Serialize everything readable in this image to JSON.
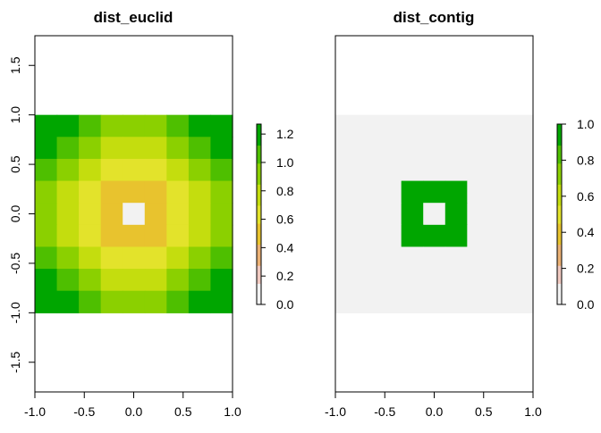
{
  "chart_data": [
    {
      "type": "heatmap",
      "title": "dist_euclid",
      "xlim": [
        -1.0,
        1.0
      ],
      "ylim": [
        -1.8,
        1.8
      ],
      "xticks": [
        "-1.0",
        "-0.5",
        "0.0",
        "0.5",
        "1.0"
      ],
      "yticks": [
        "-1.5",
        "-1.0",
        "-0.5",
        "0.0",
        "0.5",
        "1.0",
        "1.5"
      ],
      "raster_extent": {
        "x": [
          -1.0,
          1.0
        ],
        "y": [
          -1.0,
          1.0
        ]
      },
      "grid_size": [
        9,
        9
      ],
      "values": [
        [
          1.27,
          1.15,
          1.04,
          0.96,
          0.93,
          0.96,
          1.04,
          1.15,
          1.27
        ],
        [
          1.15,
          1.01,
          0.89,
          0.8,
          0.77,
          0.8,
          0.89,
          1.01,
          1.15
        ],
        [
          1.04,
          0.89,
          0.75,
          0.64,
          0.6,
          0.64,
          0.75,
          0.89,
          1.04
        ],
        [
          0.96,
          0.8,
          0.64,
          0.5,
          0.44,
          0.5,
          0.64,
          0.8,
          0.96
        ],
        [
          0.93,
          0.77,
          0.6,
          0.44,
          0.0,
          0.44,
          0.6,
          0.77,
          0.93
        ],
        [
          0.96,
          0.8,
          0.64,
          0.5,
          0.44,
          0.5,
          0.64,
          0.8,
          0.96
        ],
        [
          1.04,
          0.89,
          0.75,
          0.64,
          0.6,
          0.64,
          0.75,
          0.89,
          1.04
        ],
        [
          1.15,
          1.01,
          0.89,
          0.8,
          0.77,
          0.8,
          0.89,
          1.01,
          1.15
        ],
        [
          1.27,
          1.15,
          1.04,
          0.96,
          0.93,
          0.96,
          1.04,
          1.15,
          1.27
        ]
      ],
      "legend": {
        "min": 0.0,
        "max": 1.27,
        "ticks": [
          "0.0",
          "0.2",
          "0.4",
          "0.6",
          "0.8",
          "1.0",
          "1.2"
        ],
        "position": "right"
      }
    },
    {
      "type": "heatmap",
      "title": "dist_contig",
      "xlim": [
        -1.0,
        1.0
      ],
      "ylim": [
        -1.8,
        1.8
      ],
      "xticks": [
        "-1.0",
        "-0.5",
        "0.0",
        "0.5",
        "1.0"
      ],
      "yticks": [],
      "raster_extent": {
        "x": [
          -1.0,
          1.0
        ],
        "y": [
          -1.0,
          1.0
        ]
      },
      "grid_size": [
        9,
        9
      ],
      "values": [
        [
          0,
          0,
          0,
          0,
          0,
          0,
          0,
          0,
          0
        ],
        [
          0,
          0,
          0,
          0,
          0,
          0,
          0,
          0,
          0
        ],
        [
          0,
          0,
          0,
          0,
          0,
          0,
          0,
          0,
          0
        ],
        [
          0,
          0,
          0,
          1,
          1,
          1,
          0,
          0,
          0
        ],
        [
          0,
          0,
          0,
          1,
          0,
          1,
          0,
          0,
          0
        ],
        [
          0,
          0,
          0,
          1,
          1,
          1,
          0,
          0,
          0
        ],
        [
          0,
          0,
          0,
          0,
          0,
          0,
          0,
          0,
          0
        ],
        [
          0,
          0,
          0,
          0,
          0,
          0,
          0,
          0,
          0
        ],
        [
          0,
          0,
          0,
          0,
          0,
          0,
          0,
          0,
          0
        ]
      ],
      "legend": {
        "min": 0.0,
        "max": 1.0,
        "ticks": [
          "0.0",
          "0.2",
          "0.4",
          "0.6",
          "0.8",
          "1.0"
        ],
        "position": "right"
      }
    }
  ],
  "colors": {
    "palette": [
      "#F2F2F2",
      "#F0C9C0",
      "#EBB175",
      "#E8C32E",
      "#E3E32B",
      "#C4DD0E",
      "#8BD000",
      "#4EBF00",
      "#00A600"
    ]
  }
}
